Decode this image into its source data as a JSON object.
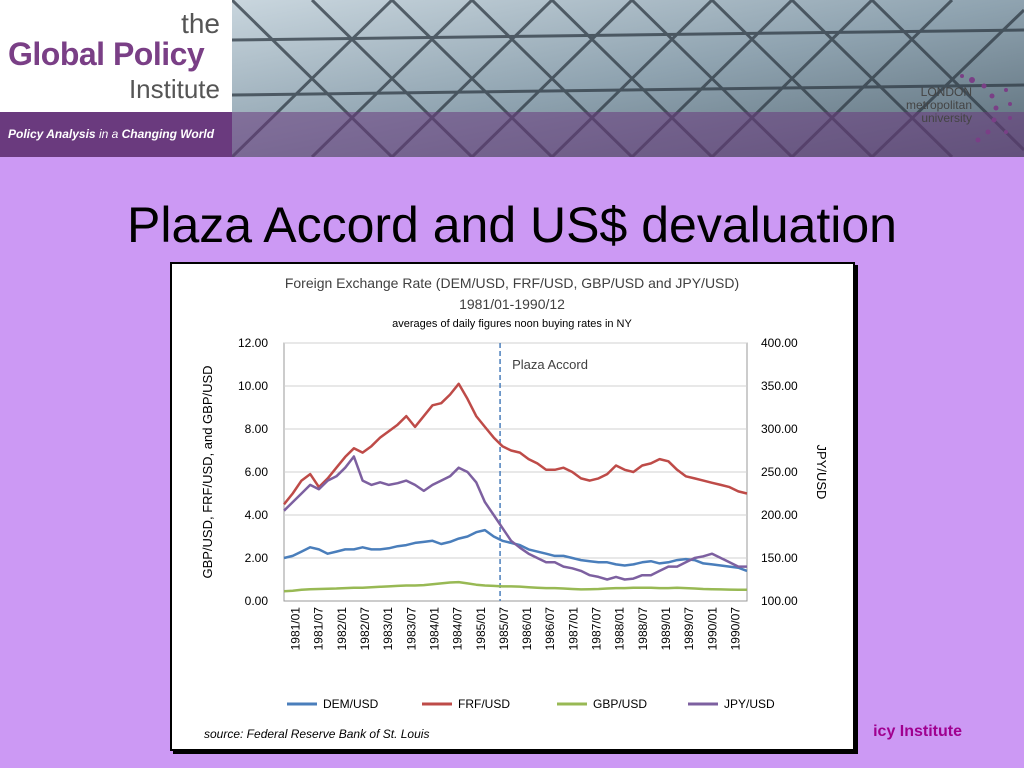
{
  "banner": {
    "logo_the": "the",
    "logo_main": "Global Policy",
    "logo_institute": "Institute",
    "tagline_1": "Policy Analysis",
    "tagline_2": " in a ",
    "tagline_3": "Changing World",
    "university_1": "LONDON",
    "university_2": "metropolitan",
    "university_3": "university"
  },
  "slide": {
    "title": "Plaza Accord and US$ devaluation",
    "footer": "icy Institute"
  },
  "colors": {
    "background": "#cc99f4",
    "DEM": "#4a7ebb",
    "FRF": "#be4b48",
    "GBP": "#98b954",
    "JPY": "#7d60a0"
  },
  "chart_data": {
    "type": "line",
    "title": "Foreign Exchange Rate (DEM/USD, FRF/USD,  GBP/USD and JPY/USD)",
    "subtitle": "1981/01-1990/12",
    "subtitle2": "averages of daily figures noon buying rates in NY",
    "ylabel_left": "GBP/USD, FRF/USD,  and GBP/USD",
    "ylabel_right": "JPY/USD",
    "ylim_left": [
      0,
      12
    ],
    "ylim_right": [
      100,
      400
    ],
    "yticks_left": [
      "0.00",
      "2.00",
      "4.00",
      "6.00",
      "8.00",
      "10.00",
      "12.00"
    ],
    "yticks_right": [
      "100.00",
      "150.00",
      "200.00",
      "250.00",
      "300.00",
      "350.00",
      "400.00"
    ],
    "x_tick_labels": [
      "1981/01",
      "1981/07",
      "1982/01",
      "1982/07",
      "1983/01",
      "1983/07",
      "1984/01",
      "1984/07",
      "1985/01",
      "1985/07",
      "1986/01",
      "1986/07",
      "1987/01",
      "1987/07",
      "1988/01",
      "1988/07",
      "1989/01",
      "1989/07",
      "1990/01",
      "1990/07"
    ],
    "grid": true,
    "legend_position": "bottom",
    "annotation": {
      "label": "Plaza Accord",
      "date": "1985/09"
    },
    "source": "source: Federal Reserve Bank of St. Louis",
    "series": [
      {
        "name": "DEM/USD",
        "axis": "left",
        "values": [
          2.0,
          2.1,
          2.3,
          2.5,
          2.4,
          2.2,
          2.3,
          2.4,
          2.4,
          2.5,
          2.4,
          2.4,
          2.45,
          2.55,
          2.6,
          2.7,
          2.75,
          2.8,
          2.65,
          2.75,
          2.9,
          3.0,
          3.2,
          3.3,
          3.0,
          2.8,
          2.7,
          2.6,
          2.4,
          2.3,
          2.2,
          2.1,
          2.1,
          2.0,
          1.9,
          1.85,
          1.8,
          1.8,
          1.7,
          1.65,
          1.7,
          1.8,
          1.85,
          1.75,
          1.8,
          1.9,
          1.95,
          1.9,
          1.75,
          1.7,
          1.65,
          1.6,
          1.55,
          1.4
        ]
      },
      {
        "name": "FRF/USD",
        "axis": "left",
        "values": [
          4.5,
          5.0,
          5.6,
          5.9,
          5.3,
          5.7,
          6.2,
          6.7,
          7.1,
          6.9,
          7.2,
          7.6,
          7.9,
          8.2,
          8.6,
          8.1,
          8.6,
          9.1,
          9.2,
          9.6,
          10.1,
          9.4,
          8.6,
          8.1,
          7.6,
          7.2,
          7.0,
          6.9,
          6.6,
          6.4,
          6.1,
          6.1,
          6.2,
          6.0,
          5.7,
          5.6,
          5.7,
          5.9,
          6.3,
          6.1,
          6.0,
          6.3,
          6.4,
          6.6,
          6.5,
          6.1,
          5.8,
          5.7,
          5.6,
          5.5,
          5.4,
          5.3,
          5.1,
          5.0
        ]
      },
      {
        "name": "GBP/USD",
        "axis": "left",
        "values": [
          0.45,
          0.48,
          0.52,
          0.55,
          0.56,
          0.57,
          0.58,
          0.6,
          0.62,
          0.62,
          0.64,
          0.66,
          0.68,
          0.7,
          0.72,
          0.72,
          0.74,
          0.78,
          0.82,
          0.86,
          0.88,
          0.82,
          0.76,
          0.72,
          0.7,
          0.68,
          0.68,
          0.67,
          0.64,
          0.62,
          0.6,
          0.6,
          0.58,
          0.56,
          0.54,
          0.55,
          0.56,
          0.58,
          0.6,
          0.6,
          0.62,
          0.62,
          0.62,
          0.6,
          0.6,
          0.62,
          0.6,
          0.58,
          0.56,
          0.55,
          0.54,
          0.53,
          0.52,
          0.52
        ]
      },
      {
        "name": "JPY/USD",
        "axis": "right",
        "values": [
          205,
          215,
          225,
          235,
          230,
          240,
          245,
          255,
          268,
          240,
          235,
          238,
          235,
          237,
          240,
          235,
          228,
          235,
          240,
          245,
          255,
          250,
          238,
          215,
          200,
          185,
          170,
          162,
          155,
          150,
          145,
          145,
          140,
          138,
          135,
          130,
          128,
          125,
          128,
          125,
          126,
          130,
          130,
          135,
          140,
          140,
          145,
          150,
          152,
          155,
          150,
          145,
          140,
          140
        ]
      }
    ]
  }
}
